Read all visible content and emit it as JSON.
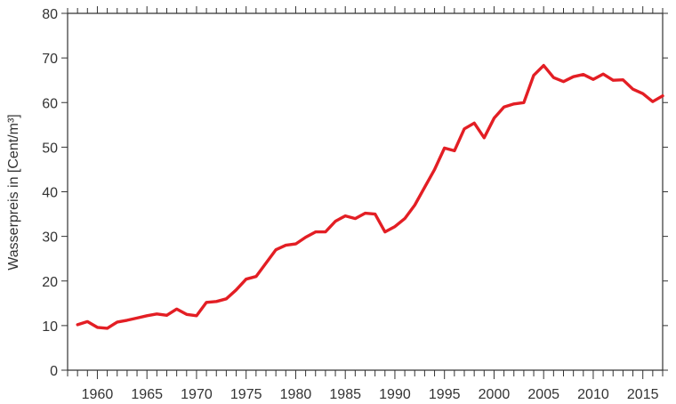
{
  "chart_data": {
    "type": "line",
    "title": "",
    "xlabel": "",
    "ylabel": "Wasserpreis in [Cent/m³]",
    "xlim": [
      1957,
      2017
    ],
    "ylim": [
      0,
      80
    ],
    "y_ticks": [
      0,
      10,
      20,
      30,
      40,
      50,
      60,
      70,
      80
    ],
    "x_ticks": [
      1960,
      1965,
      1970,
      1975,
      1980,
      1985,
      1990,
      1995,
      2000,
      2005,
      2010,
      2015
    ],
    "x_minor_step": 1,
    "grid": false,
    "legend": "none",
    "series": [
      {
        "color": "#e31e24",
        "x": [
          1958,
          1959,
          1960,
          1961,
          1962,
          1963,
          1964,
          1965,
          1966,
          1967,
          1968,
          1969,
          1970,
          1971,
          1972,
          1973,
          1974,
          1975,
          1976,
          1977,
          1978,
          1979,
          1980,
          1981,
          1982,
          1983,
          1984,
          1985,
          1986,
          1987,
          1988,
          1989,
          1990,
          1991,
          1992,
          1993,
          1994,
          1995,
          1996,
          1997,
          1998,
          1999,
          2000,
          2001,
          2002,
          2003,
          2004,
          2005,
          2006,
          2007,
          2008,
          2009,
          2010,
          2011,
          2012,
          2013,
          2014,
          2015,
          2016,
          2017
        ],
        "values": [
          10.2,
          10.9,
          9.6,
          9.4,
          10.8,
          11.2,
          11.7,
          12.2,
          12.6,
          12.3,
          13.7,
          12.5,
          12.2,
          15.2,
          15.4,
          16.0,
          18.0,
          20.4,
          21.0,
          24.0,
          27.0,
          28.0,
          28.3,
          29.8,
          31.0,
          31.0,
          33.4,
          34.6,
          34.0,
          35.2,
          35.0,
          31.0,
          32.2,
          34.0,
          37.0,
          41.0,
          45.0,
          49.8,
          49.2,
          54.1,
          55.4,
          52.1,
          56.5,
          59.0,
          59.7,
          60.0,
          66.1,
          68.3,
          65.6,
          64.7,
          65.8,
          66.3,
          65.2,
          66.4,
          65.0,
          65.1,
          63.0,
          62.0,
          60.2,
          61.5
        ]
      }
    ]
  }
}
